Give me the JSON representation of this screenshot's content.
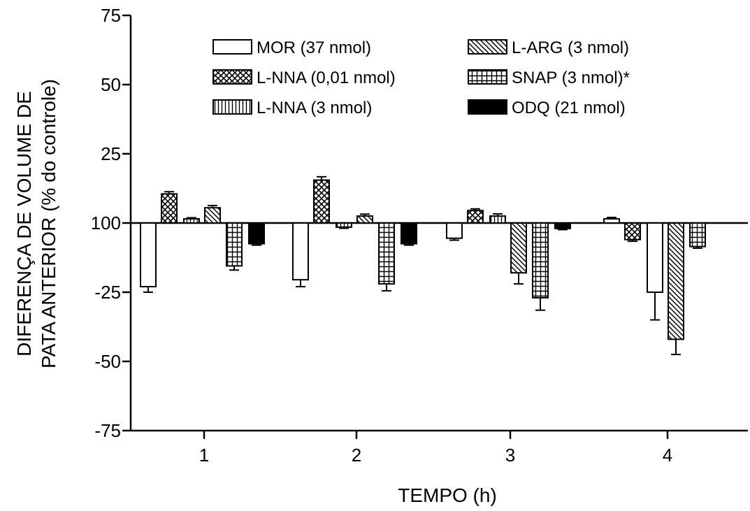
{
  "chart_data": {
    "type": "bar",
    "xlabel": "TEMPO (h)",
    "ylabel_lines": [
      "DIFERENÇA DE VOLUME DE",
      "PATA ANTERIOR (% do controle)"
    ],
    "categories": [
      "1",
      "2",
      "3",
      "4"
    ],
    "y_ticks": [
      75,
      50,
      25,
      100,
      -25,
      -50,
      -75
    ],
    "y_tick_labels": [
      "75",
      "50",
      "25",
      "100",
      "-25",
      "-50",
      "-75"
    ],
    "ylim": [
      -75,
      75
    ],
    "baseline": 0,
    "legend_position": "top",
    "series": [
      {
        "name": "MOR (37 nmol)",
        "pattern": "white",
        "values": [
          -23,
          -20.5,
          -5.5,
          1.5
        ],
        "errors": [
          2,
          2.5,
          0.7,
          0.5
        ]
      },
      {
        "name": "L-NNA (0,01 nmol)",
        "pattern": "crosshatch",
        "values": [
          10.5,
          15.5,
          4.5,
          -6
        ],
        "errors": [
          0.8,
          1.2,
          0.6,
          0.6
        ]
      },
      {
        "name": "L-NNA (3 nmol)",
        "pattern": "vertical",
        "values": [
          1.5,
          -1.5,
          2.5,
          -20
        ],
        "errors": [
          0.4,
          0.4,
          0.8,
          4
        ]
      },
      {
        "name": "L-ARG (3 nmol)",
        "pattern": "diagonal",
        "values": [
          5.5,
          2.5,
          -18,
          -42
        ],
        "errors": [
          0.8,
          0.7,
          4,
          5.5
        ]
      },
      {
        "name": "SNAP (3 nmol)*",
        "pattern": "grid",
        "values": [
          -15.5,
          -22,
          -27,
          -8.5
        ],
        "errors": [
          1.5,
          2.5,
          4.5,
          0.6
        ]
      },
      {
        "name": "ODQ (21 nmol)",
        "pattern": "black",
        "values": [
          -7.5,
          -7.5,
          -2,
          null
        ],
        "errors": [
          0.5,
          0.5,
          0.4,
          null
        ]
      }
    ],
    "extra_bars": [
      {
        "category": "4",
        "slot": 2,
        "pattern": "white",
        "value": -25,
        "error": 10
      }
    ]
  }
}
